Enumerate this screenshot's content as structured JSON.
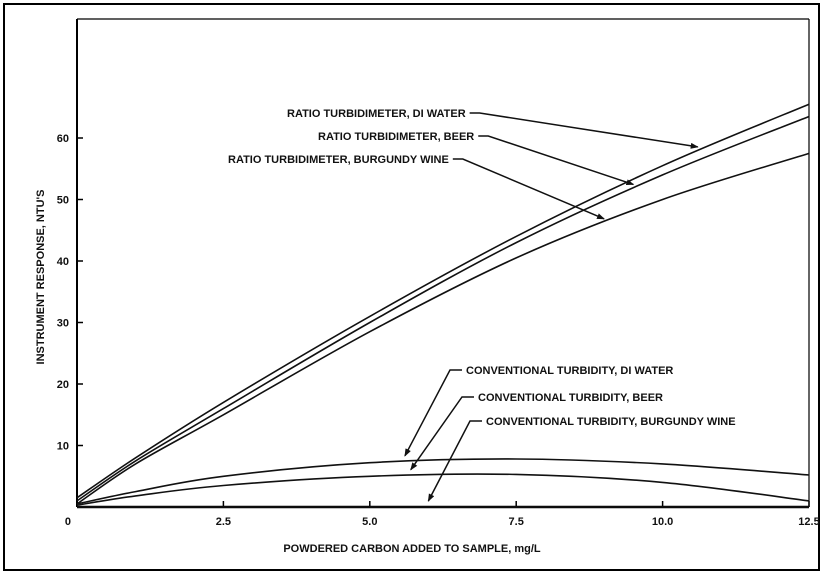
{
  "chart_data": {
    "type": "line",
    "title": "",
    "xlabel": "POWDERED CARBON ADDED TO SAMPLE, mg/L",
    "ylabel": "INSTRUMENT RESPONSE, NTU'S",
    "xlim": [
      0,
      12.5
    ],
    "ylim": [
      0,
      80
    ],
    "x_ticks": [
      0,
      2.5,
      5.0,
      7.5,
      10.0,
      12.5
    ],
    "x_tick_labels": [
      "0",
      "2.5",
      "5.0",
      "7.5",
      "10.0",
      "12.5"
    ],
    "y_ticks": [
      10,
      20,
      30,
      40,
      50,
      60
    ],
    "y_tick_labels": [
      "10",
      "20",
      "30",
      "40",
      "50",
      "60"
    ],
    "grid": false,
    "legend": "none",
    "series": [
      {
        "name": "RATIO TURBIDIMETER, DI WATER",
        "x": [
          0,
          1,
          2.5,
          5,
          7.5,
          10,
          12.5
        ],
        "y": [
          1.5,
          8,
          17,
          31,
          44,
          55.5,
          65.5
        ]
      },
      {
        "name": "RATIO TURBIDIMETER, BEER",
        "x": [
          0,
          1,
          2.5,
          5,
          7.5,
          10,
          12.5
        ],
        "y": [
          1.0,
          7.5,
          16,
          30,
          43,
          54,
          63.5
        ]
      },
      {
        "name": "RATIO TURBIDIMETER, BURGUNDY WINE",
        "x": [
          0,
          1,
          2.5,
          5,
          7.5,
          10,
          12.5
        ],
        "y": [
          0.5,
          7,
          15,
          28.5,
          40.5,
          50,
          57.5
        ]
      },
      {
        "name": "CONVENTIONAL TURBIDITY, DI WATER",
        "x": [
          0,
          1,
          2.5,
          5,
          7.5,
          10,
          12.5
        ],
        "y": [
          0.5,
          2.5,
          5,
          7.2,
          7.8,
          7,
          5.2
        ]
      },
      {
        "name": "CONVENTIONAL TURBIDITY, BEER",
        "x": [
          0,
          1,
          2.5,
          5,
          7.5,
          10,
          12.5
        ],
        "y": [
          0.3,
          1.8,
          3.5,
          5,
          5.3,
          4,
          1
        ]
      },
      {
        "name": "CONVENTIONAL TURBIDITY, BURGUNDY WINE",
        "x": [
          0,
          2.5,
          5,
          7.5,
          10,
          12.5
        ],
        "y": [
          0,
          0,
          0,
          0,
          0,
          0
        ]
      }
    ],
    "annotations": [
      {
        "text": "RATIO TURBIDIMETER, DI WATER",
        "series": 0,
        "arrow_to_x": 10.6
      },
      {
        "text": "RATIO TURBIDIMETER, BEER",
        "series": 1,
        "arrow_to_x": 9.5
      },
      {
        "text": "RATIO TURBIDIMETER, BURGUNDY WINE",
        "series": 2,
        "arrow_to_x": 9.0
      },
      {
        "text": "CONVENTIONAL TURBIDITY, DI WATER",
        "series": 3,
        "arrow_to_x": 5.6
      },
      {
        "text": "CONVENTIONAL TURBIDITY, BEER",
        "series": 4,
        "arrow_to_x": 5.7
      },
      {
        "text": "CONVENTIONAL TURBIDITY, BURGUNDY WINE",
        "series": 5,
        "arrow_to_x": 6.0
      }
    ]
  }
}
